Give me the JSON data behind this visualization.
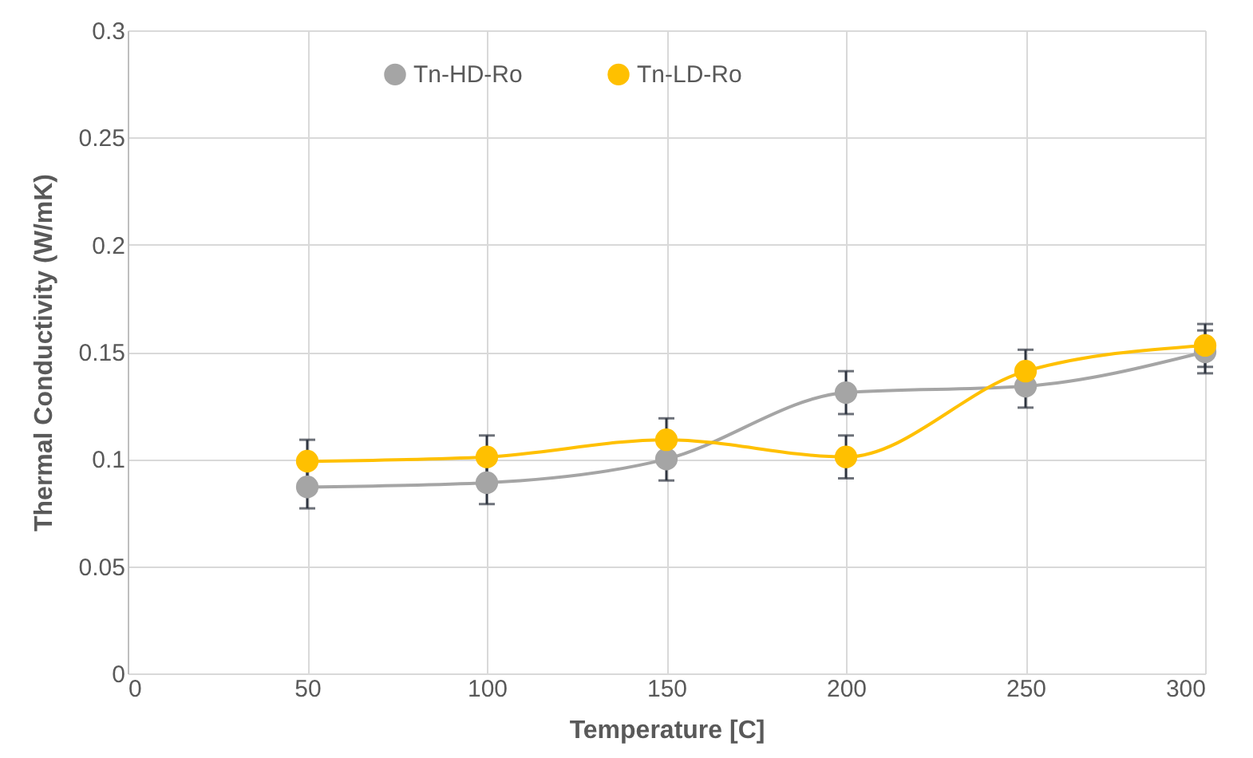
{
  "chart_data": {
    "type": "line",
    "xlabel": "Temperature [C]",
    "ylabel": "Thermal Conductivity (W/mK)",
    "x": [
      50,
      100,
      150,
      200,
      250,
      300
    ],
    "series": [
      {
        "name": "Tn-HD-Ro",
        "color": "#a5a5a5",
        "values": [
          0.087,
          0.089,
          0.1,
          0.131,
          0.134,
          0.15
        ],
        "errors": [
          0.01,
          0.01,
          0.01,
          0.01,
          0.01,
          0.01
        ]
      },
      {
        "name": "Tn-LD-Ro",
        "color": "#ffc000",
        "values": [
          0.099,
          0.101,
          0.109,
          0.101,
          0.141,
          0.153
        ],
        "errors": [
          0.01,
          0.01,
          0.01,
          0.01,
          0.01,
          0.01
        ]
      }
    ],
    "xlim": [
      0,
      300
    ],
    "xticks": [
      0,
      50,
      100,
      150,
      200,
      250,
      300
    ],
    "ylim": [
      0,
      0.3
    ],
    "yticks": [
      0,
      0.05,
      0.1,
      0.15,
      0.2,
      0.25,
      0.3
    ],
    "grid": true,
    "legend": "top",
    "marker": "circle",
    "line_style": "solid"
  }
}
